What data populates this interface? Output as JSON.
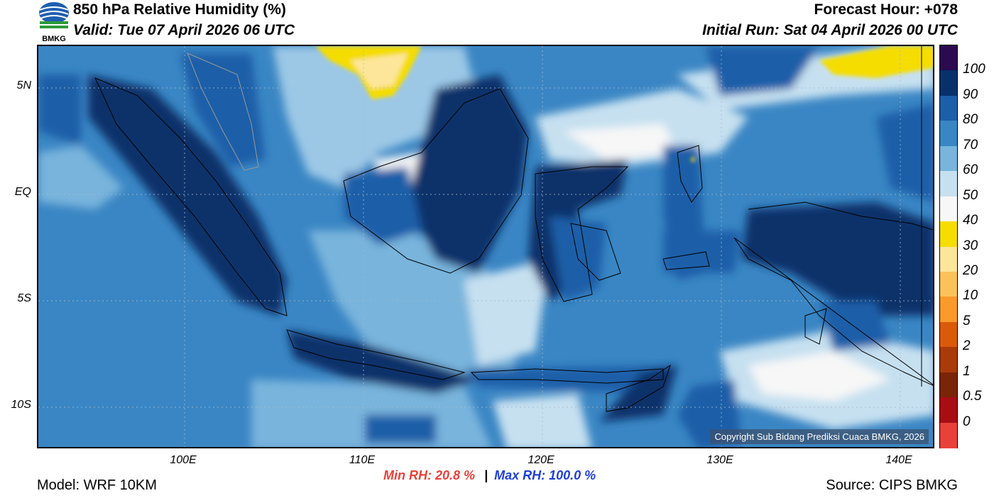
{
  "header": {
    "title": "850 hPa Relative Humidity (%)",
    "valid": "Valid: Tue 07 April 2026 06 UTC",
    "forecast_hour": "Forecast Hour: +078",
    "initial_run": "Initial Run: Sat 04 April 2026 00 UTC",
    "logo_text": "BMKG"
  },
  "map": {
    "lat_labels": [
      "5N",
      "EQ",
      "5S",
      "10S"
    ],
    "lon_labels": [
      "100E",
      "110E",
      "120E",
      "130E",
      "140E"
    ],
    "copyright": "Copyright Sub Bidang Prediksi Cuaca BMKG, 2026"
  },
  "colorbar": {
    "labels": [
      "100",
      "90",
      "80",
      "70",
      "60",
      "50",
      "40",
      "30",
      "20",
      "10",
      "5",
      "2",
      "1",
      "0.5",
      "0"
    ],
    "colors": [
      "#2b0a4f",
      "#08306b",
      "#1c5ea8",
      "#3a86c4",
      "#78b4dc",
      "#c6e0f0",
      "#f7f7f7",
      "#f5dd00",
      "#fde59a",
      "#fcc25a",
      "#f99a2a",
      "#db5a0a",
      "#a93a0a",
      "#7a2408",
      "#a80d14",
      "#e8413a"
    ]
  },
  "footer": {
    "model": "Model: WRF 10KM",
    "source": "Source: CIPS BMKG",
    "min_rh": "Min RH:  20.8 %",
    "separator": "|",
    "max_rh": "Max RH: 100.0 %"
  }
}
